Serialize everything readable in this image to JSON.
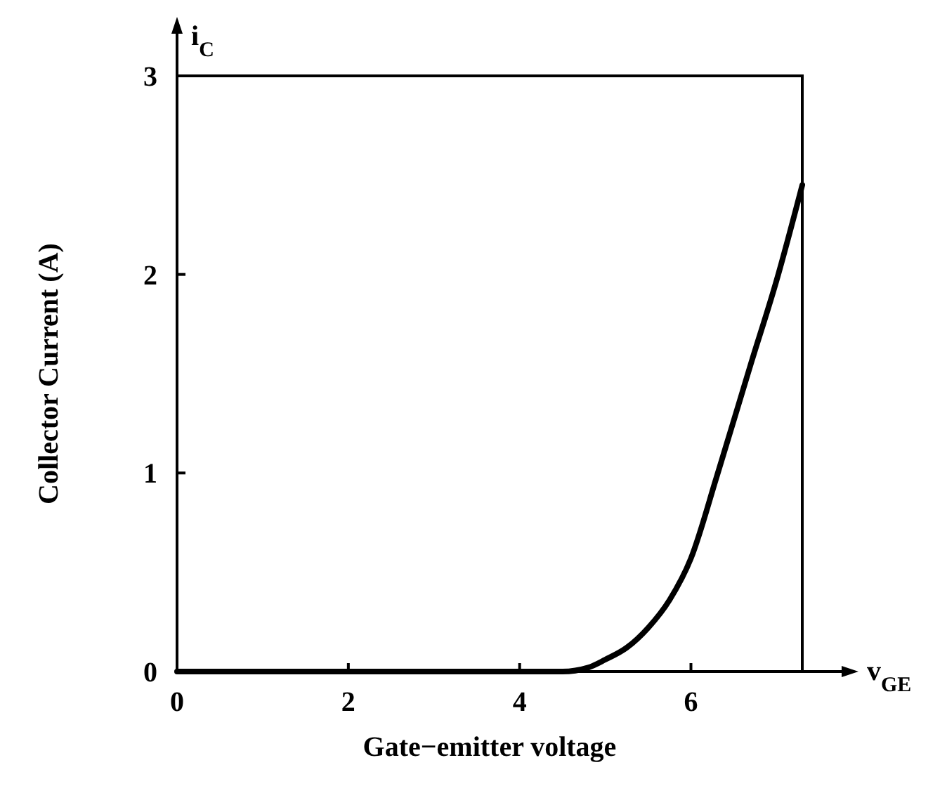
{
  "chart_data": {
    "type": "line",
    "xlabel": "Gate−emitter voltage",
    "ylabel": "Collector Current (A)",
    "annotations": [
      "i$_{C}$",
      "v$_{GE}$"
    ],
    "xlim": [
      0,
      7.3
    ],
    "ylim": [
      0,
      3
    ],
    "xticks": [
      0,
      2,
      4,
      6
    ],
    "yticks": [
      0,
      1,
      2,
      3
    ],
    "grid": false,
    "series": [
      {
        "color": "#000000",
        "x": [
          0,
          4.0,
          4.5,
          4.8,
          5.0,
          5.25,
          5.5,
          5.75,
          6.0,
          6.3,
          6.7,
          7.0,
          7.3
        ],
        "values": [
          0,
          0,
          0,
          0.02,
          0.06,
          0.12,
          0.22,
          0.36,
          0.57,
          0.98,
          1.55,
          1.97,
          2.45
        ]
      }
    ]
  }
}
